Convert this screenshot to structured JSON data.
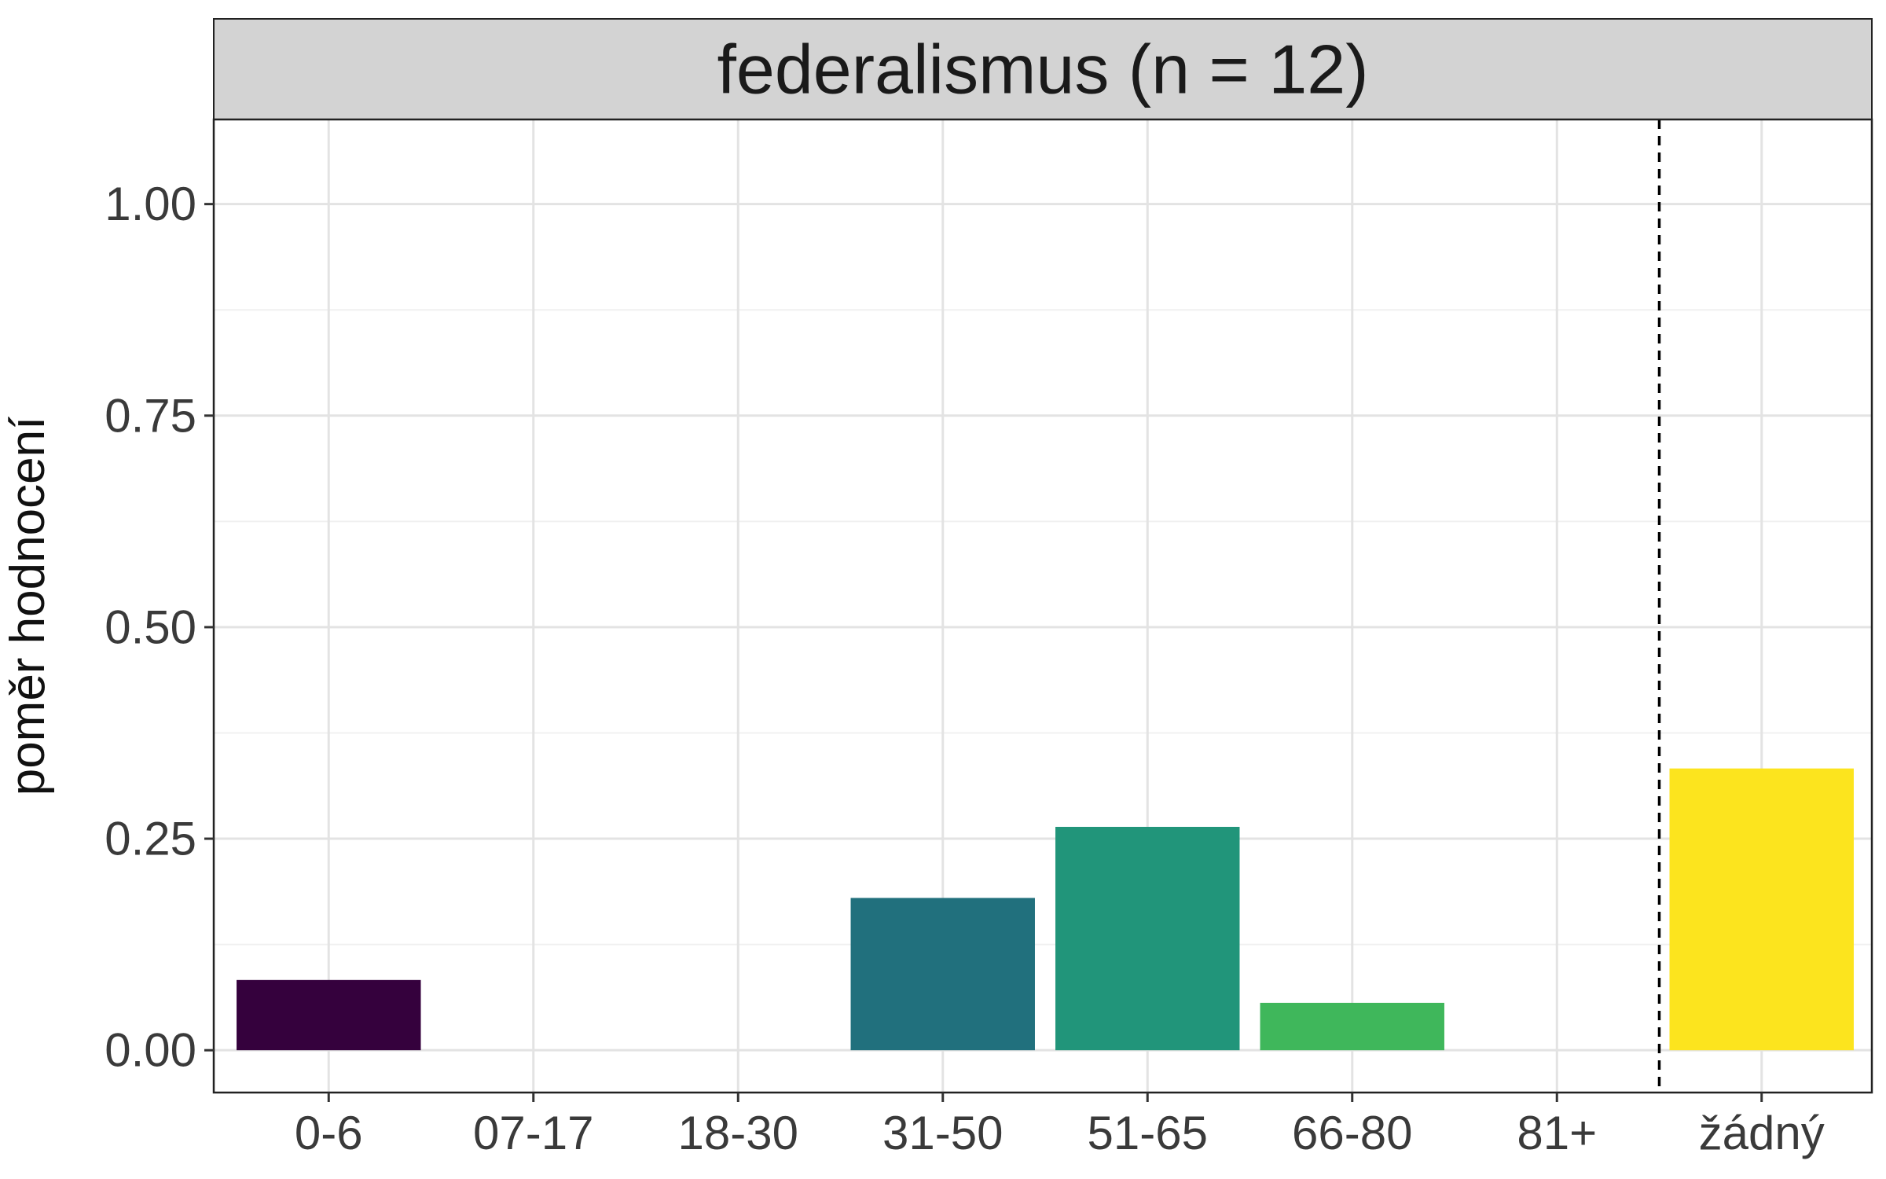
{
  "chart_data": {
    "type": "bar",
    "title": "federalismus (n = 12)",
    "xlabel": "",
    "ylabel": "poměr hodnocení",
    "categories": [
      "0-6",
      "07-17",
      "18-30",
      "31-50",
      "51-65",
      "66-80",
      "81+",
      "žádný"
    ],
    "values": [
      0.083,
      0,
      0,
      0.18,
      0.264,
      0.056,
      0,
      0.333
    ],
    "colors": [
      "#35013D",
      "#440154",
      "#3B528B",
      "#21707D",
      "#21957A",
      "#3FB75B",
      "#A8D93A",
      "#FCE41E"
    ],
    "ylim": [
      -0.05,
      1.1
    ],
    "yticks": [
      "0.00",
      "0.25",
      "0.50",
      "0.75",
      "1.00"
    ],
    "ytick_values": [
      0,
      0.25,
      0.5,
      0.75,
      1.0
    ],
    "reference_line": {
      "after_category": "81+",
      "style": "dashed",
      "color": "#000000"
    },
    "grid": true,
    "strip_background": "#D3D3D3"
  }
}
